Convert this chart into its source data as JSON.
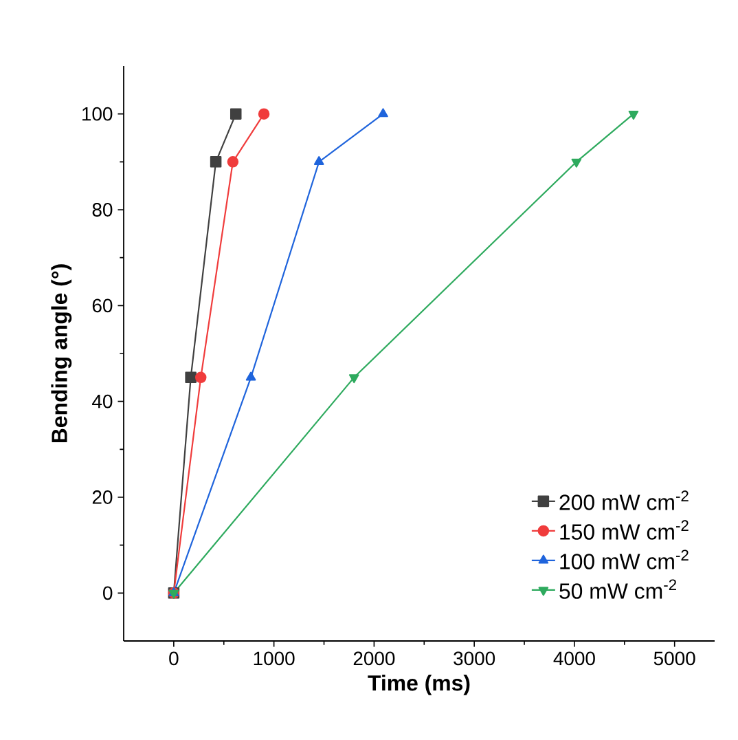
{
  "chart_data": {
    "type": "line",
    "xlabel": "Time (ms)",
    "ylabel": "Bending angle (°)",
    "xlim": [
      -500,
      5400
    ],
    "ylim": [
      -10,
      110
    ],
    "xticks": [
      0,
      1000,
      2000,
      3000,
      4000,
      5000
    ],
    "yticks": [
      0,
      20,
      40,
      60,
      80,
      100
    ],
    "grid": false,
    "legend": "bottom right",
    "series": [
      {
        "name": "200 mW cm$^{-2}$",
        "color": "#404040",
        "marker": "square",
        "x": [
          0,
          170,
          420,
          620
        ],
        "values": [
          0,
          45,
          90,
          100
        ]
      },
      {
        "name": "150 mW cm$^{-2}$",
        "color": "#f03c3c",
        "marker": "circle",
        "x": [
          0,
          270,
          590,
          900
        ],
        "values": [
          0,
          45,
          90,
          100
        ]
      },
      {
        "name": "100 mW cm$^{-2}$",
        "color": "#1f64dc",
        "marker": "triangle",
        "x": [
          0,
          770,
          1450,
          2090
        ],
        "values": [
          0,
          45,
          90,
          100
        ]
      },
      {
        "name": "50 mW cm$^{-2}$",
        "color": "#2eaa5e",
        "marker": "triangle down",
        "x": [
          0,
          1800,
          4020,
          4590
        ],
        "values": [
          0,
          45,
          90,
          100
        ]
      }
    ]
  }
}
